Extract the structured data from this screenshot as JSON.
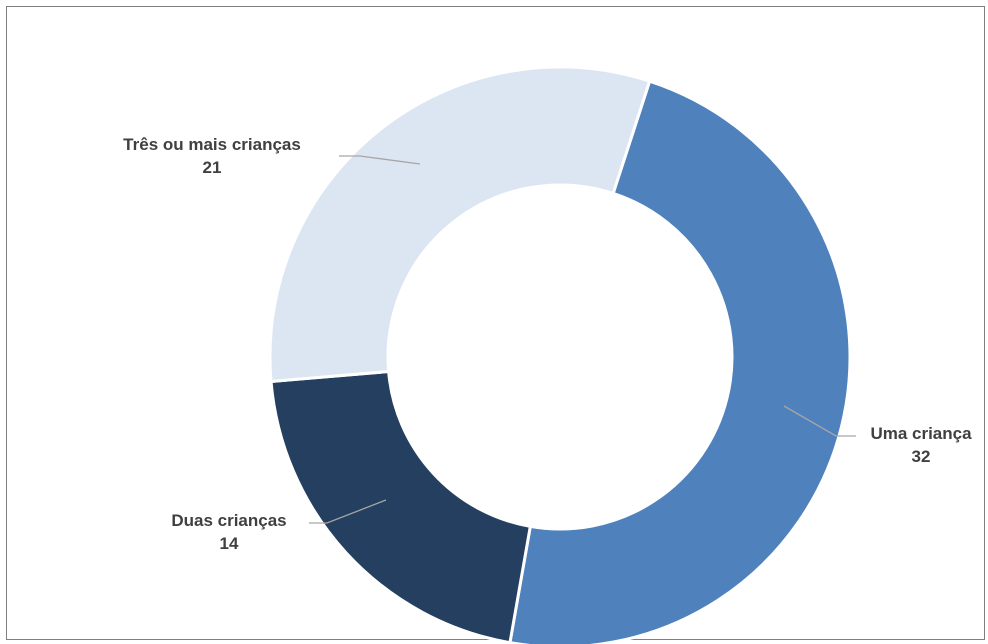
{
  "chart_data": {
    "type": "pie",
    "variant": "donut",
    "categories": [
      "Uma criança",
      "Duas crianças",
      "Três ou mais crianças"
    ],
    "values": [
      32,
      14,
      21
    ],
    "colors": [
      "#4f81bd",
      "#243f60",
      "#dce6f2"
    ],
    "start_angle_deg": 18,
    "direction": "clockwise",
    "labels": [
      {
        "name": "Uma criança",
        "value": "32"
      },
      {
        "name": "Duas crianças",
        "value": "14"
      },
      {
        "name": "Três ou mais crianças",
        "value": "21"
      }
    ]
  }
}
